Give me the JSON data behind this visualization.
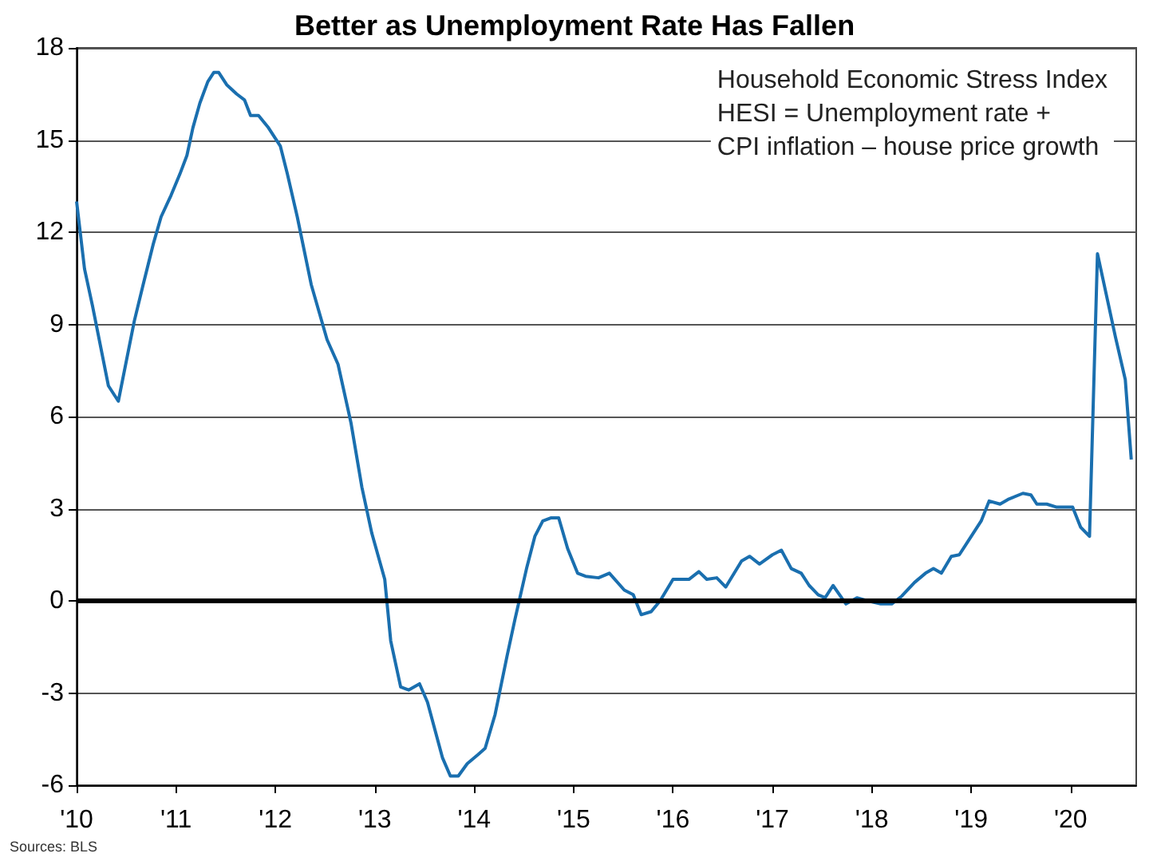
{
  "chart_data": {
    "type": "line",
    "title": "Better as Unemployment Rate Has Fallen",
    "annotations": [
      "Household Economic Stress Index",
      "HESI = Unemployment rate +",
      "CPI inflation – house price growth",
      "Sources: BLS"
    ],
    "series": [
      {
        "color": "#1a6faf",
        "x": [
          2010.0,
          2010.08,
          2010.16,
          2010.24,
          2010.32,
          2010.42,
          2010.5,
          2010.58,
          2010.67,
          2010.77,
          2010.85,
          2010.95,
          2011.04,
          2011.11,
          2011.17,
          2011.24,
          2011.32,
          2011.38,
          2011.43,
          2011.51,
          2011.61,
          2011.69,
          2011.75,
          2011.83,
          2011.93,
          2012.05,
          2012.12,
          2012.22,
          2012.36,
          2012.52,
          2012.63,
          2012.76,
          2012.87,
          2012.97,
          2013.1,
          2013.16,
          2013.26,
          2013.34,
          2013.45,
          2013.53,
          2013.68,
          2013.76,
          2013.84,
          2013.93,
          2014.04,
          2014.11,
          2014.21,
          2014.33,
          2014.41,
          2014.53,
          2014.61,
          2014.69,
          2014.77,
          2014.85,
          2014.94,
          2015.04,
          2015.12,
          2015.25,
          2015.36,
          2015.51,
          2015.6,
          2015.68,
          2015.78,
          2015.87,
          2016.0,
          2016.16,
          2016.26,
          2016.34,
          2016.44,
          2016.53,
          2016.69,
          2016.77,
          2016.87,
          2017.0,
          2017.09,
          2017.19,
          2017.29,
          2017.37,
          2017.46,
          2017.53,
          2017.61,
          2017.74,
          2017.85,
          2017.96,
          2018.09,
          2018.2,
          2018.3,
          2018.43,
          2018.54,
          2018.62,
          2018.7,
          2018.8,
          2018.88,
          2018.96,
          2019.1,
          2019.18,
          2019.29,
          2019.37,
          2019.52,
          2019.6,
          2019.66,
          2019.76,
          2019.86,
          2020.02,
          2020.1,
          2020.19,
          2020.27,
          2020.37,
          2020.45,
          2020.55,
          2020.61
        ],
        "values": [
          13.0,
          10.8,
          9.6,
          8.3,
          7.0,
          6.5,
          7.8,
          9.1,
          10.3,
          11.6,
          12.5,
          13.2,
          13.9,
          14.5,
          15.4,
          16.2,
          16.9,
          17.2,
          17.2,
          16.8,
          16.5,
          16.3,
          15.8,
          15.8,
          15.4,
          14.8,
          13.9,
          12.5,
          10.3,
          8.5,
          7.7,
          5.8,
          3.7,
          2.2,
          0.7,
          -1.3,
          -2.8,
          -2.9,
          -2.7,
          -3.3,
          -5.1,
          -5.7,
          -5.7,
          -5.3,
          -5.0,
          -4.8,
          -3.7,
          -1.8,
          -0.6,
          1.1,
          2.1,
          2.6,
          2.7,
          2.7,
          1.7,
          0.9,
          0.8,
          0.75,
          0.9,
          0.35,
          0.2,
          -0.45,
          -0.35,
          0,
          0.7,
          0.7,
          0.95,
          0.7,
          0.75,
          0.45,
          1.3,
          1.45,
          1.2,
          1.5,
          1.65,
          1.05,
          0.9,
          0.5,
          0.2,
          0.1,
          0.5,
          -0.1,
          0.1,
          0,
          -0.1,
          -0.1,
          0.15,
          0.6,
          0.9,
          1.05,
          0.9,
          1.45,
          1.5,
          1.9,
          2.6,
          3.25,
          3.15,
          3.3,
          3.5,
          3.45,
          3.15,
          3.15,
          3.05,
          3.05,
          2.4,
          2.1,
          11.3,
          9.8,
          8.6,
          7.2,
          4.6
        ]
      }
    ],
    "xlim": [
      2010,
      2020.66
    ],
    "xticks": [
      {
        "value": 2010,
        "label": "'10"
      },
      {
        "value": 2011,
        "label": "'11"
      },
      {
        "value": 2012,
        "label": "'12"
      },
      {
        "value": 2013,
        "label": "'13"
      },
      {
        "value": 2014,
        "label": "'14"
      },
      {
        "value": 2015,
        "label": "'15"
      },
      {
        "value": 2016,
        "label": "'16"
      },
      {
        "value": 2017,
        "label": "'17"
      },
      {
        "value": 2018,
        "label": "'18"
      },
      {
        "value": 2019,
        "label": "'19"
      },
      {
        "value": 2020,
        "label": "'20"
      }
    ],
    "ylim": [
      -6,
      18
    ],
    "yticks": [
      -6,
      -3,
      0,
      3,
      6,
      9,
      12,
      15,
      18
    ],
    "ref_lines": [
      {
        "axis": "y",
        "value": 0,
        "color": "#000000"
      }
    ],
    "grid": "y",
    "marker": "none",
    "line_style": "solid"
  }
}
